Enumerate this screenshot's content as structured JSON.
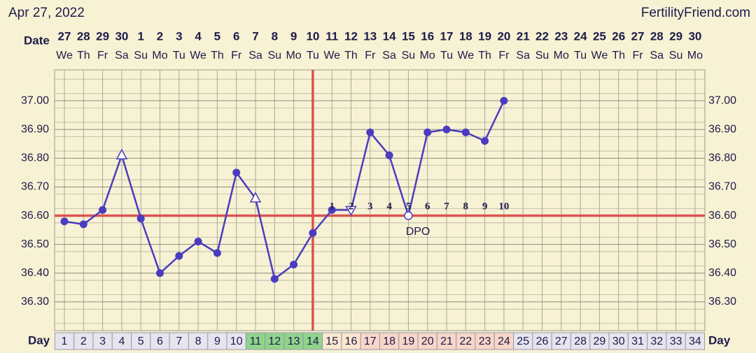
{
  "chart_data": {
    "type": "line",
    "title": "Apr 27, 2022",
    "source": "FertilityFriend.com",
    "date_label": "Date",
    "day_label": "Day",
    "dpo_label": "DPO",
    "categories": [
      1,
      2,
      3,
      4,
      5,
      6,
      7,
      8,
      9,
      10,
      11,
      12,
      13,
      14,
      15,
      16,
      17,
      18,
      19,
      20,
      21,
      22,
      23,
      24,
      25,
      26,
      27,
      28,
      29,
      30,
      31,
      32,
      33,
      34
    ],
    "dates": [
      27,
      28,
      29,
      30,
      1,
      2,
      3,
      4,
      5,
      6,
      7,
      8,
      9,
      10,
      11,
      12,
      13,
      14,
      15,
      16,
      17,
      18,
      19,
      20,
      21,
      22,
      23,
      24,
      25,
      26,
      27,
      28,
      29,
      30
    ],
    "weekdays": [
      "We",
      "Th",
      "Fr",
      "Sa",
      "Su",
      "Mo",
      "Tu",
      "We",
      "Th",
      "Fr",
      "Sa",
      "Su",
      "Mo",
      "Tu",
      "We",
      "Th",
      "Fr",
      "Sa",
      "Su",
      "Mo",
      "Tu",
      "We",
      "Th",
      "Fr",
      "Sa",
      "Su",
      "Mo",
      "Tu",
      "We",
      "Th",
      "Fr",
      "Sa",
      "Su",
      "Mo"
    ],
    "values": [
      36.58,
      36.57,
      36.62,
      36.81,
      36.59,
      36.4,
      36.46,
      36.51,
      36.47,
      36.75,
      36.66,
      36.38,
      36.43,
      36.54,
      36.62,
      36.62,
      36.89,
      36.81,
      36.6,
      36.89,
      36.9,
      36.89,
      36.86,
      37.0,
      null,
      null,
      null,
      null,
      null,
      null,
      null,
      null,
      null,
      null
    ],
    "markers": [
      "circle",
      "circle",
      "circle",
      "triangle",
      "circle",
      "circle",
      "circle",
      "circle",
      "circle",
      "circle",
      "triangle",
      "circle",
      "circle",
      "circle",
      "circle",
      "triangle-down",
      "circle",
      "circle",
      "open-circle",
      "circle",
      "circle",
      "circle",
      "circle",
      "circle",
      null,
      null,
      null,
      null,
      null,
      null,
      null,
      null,
      null,
      null
    ],
    "dpo": [
      null,
      null,
      null,
      null,
      null,
      null,
      null,
      null,
      null,
      null,
      null,
      null,
      null,
      null,
      1,
      2,
      3,
      4,
      5,
      6,
      7,
      8,
      9,
      10,
      null,
      null,
      null,
      null,
      null,
      null,
      null,
      null,
      null,
      null
    ],
    "day_colors": [
      "#e6e4ee",
      "#e6e4ee",
      "#e6e4ee",
      "#e6e4ee",
      "#e6e4ee",
      "#e6e4ee",
      "#e6e4ee",
      "#e6e4ee",
      "#e6e4ee",
      "#e6e4ee",
      "#8fd48a",
      "#8fd48a",
      "#8fd48a",
      "#8fd48a",
      "#fbe6cf",
      "#fbe6cf",
      "#f8d6c8",
      "#f8d6c8",
      "#f8d6c8",
      "#f8d6c8",
      "#f8d6c8",
      "#f8d6c8",
      "#f8d6c8",
      "#f8d6c8",
      "#e6e4ee",
      "#e6e4ee",
      "#e6e4ee",
      "#e6e4ee",
      "#e6e4ee",
      "#e6e4ee",
      "#e6e4ee",
      "#e6e4ee",
      "#e6e4ee",
      "#e6e4ee"
    ],
    "color": "#4a3cc0",
    "coverline": 36.6,
    "ovulation_day": 14,
    "reference_color": "#d9534f",
    "ylim": [
      36.2,
      37.1
    ],
    "yticks": [
      {
        "value": 36.3,
        "label": "36.30"
      },
      {
        "value": 36.4,
        "label": "36.40"
      },
      {
        "value": 36.5,
        "label": "36.50"
      },
      {
        "value": 36.6,
        "label": "36.60"
      },
      {
        "value": 36.7,
        "label": "36.70"
      },
      {
        "value": 36.8,
        "label": "36.80"
      },
      {
        "value": 36.9,
        "label": "36.90"
      },
      {
        "value": 37,
        "label": "37.00"
      }
    ],
    "grid": true
  }
}
